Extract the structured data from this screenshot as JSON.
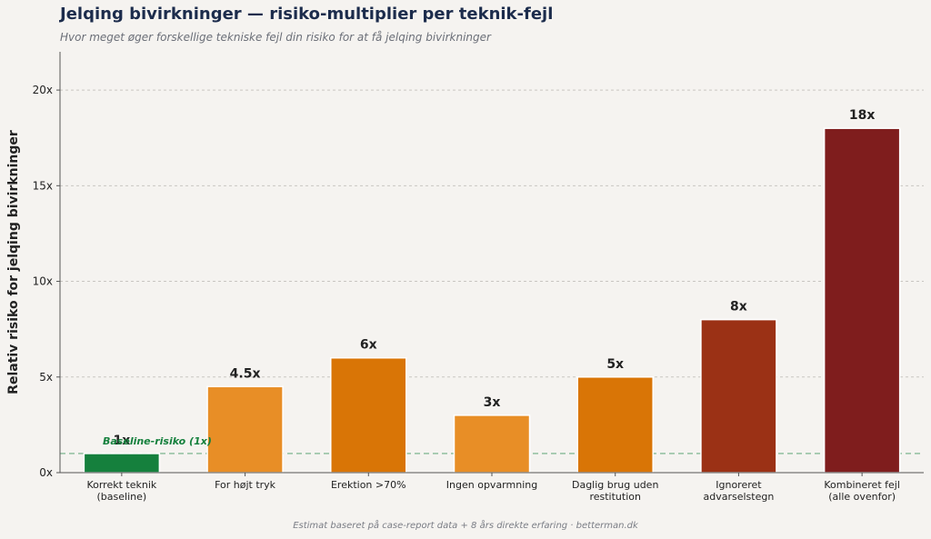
{
  "header": {
    "title": "Jelqing bivirkninger — risiko-multiplier per teknik-fejl",
    "subtitle": "Hvor meget øger forskellige tekniske fejl din risiko for at få jelqing bivirkninger"
  },
  "footer": {
    "note": "Estimat baseret på case-report data + 8 års direkte erfaring · betterman.dk"
  },
  "chart_data": {
    "type": "bar",
    "categories": [
      [
        "Korrekt teknik",
        "(baseline)"
      ],
      [
        "For højt tryk"
      ],
      [
        "Erektion >70%"
      ],
      [
        "Ingen opvarmning"
      ],
      [
        "Daglig brug uden",
        "restitution"
      ],
      [
        "Ignoreret",
        "advarselstegn"
      ],
      [
        "Kombineret fejl",
        "(alle ovenfor)"
      ]
    ],
    "values": [
      1,
      4.5,
      6,
      3,
      5,
      8,
      18
    ],
    "value_labels": [
      "1x",
      "4.5x",
      "6x",
      "3x",
      "5x",
      "8x",
      "18x"
    ],
    "bar_colors": [
      "#15803d",
      "#e88e26",
      "#d97506",
      "#e88e26",
      "#d97506",
      "#9b3115",
      "#7f1d1d"
    ],
    "ylabel": "Relativ risiko for jelqing bivirkninger",
    "ylim": [
      0,
      22
    ],
    "yticks": [
      0,
      5,
      10,
      15,
      20
    ],
    "ytick_labels": [
      "0x",
      "5x",
      "10x",
      "15x",
      "20x"
    ],
    "grid": true,
    "reference_line": {
      "value": 1,
      "label": "Baseline-risiko (1x)",
      "color": "#15803d"
    }
  }
}
